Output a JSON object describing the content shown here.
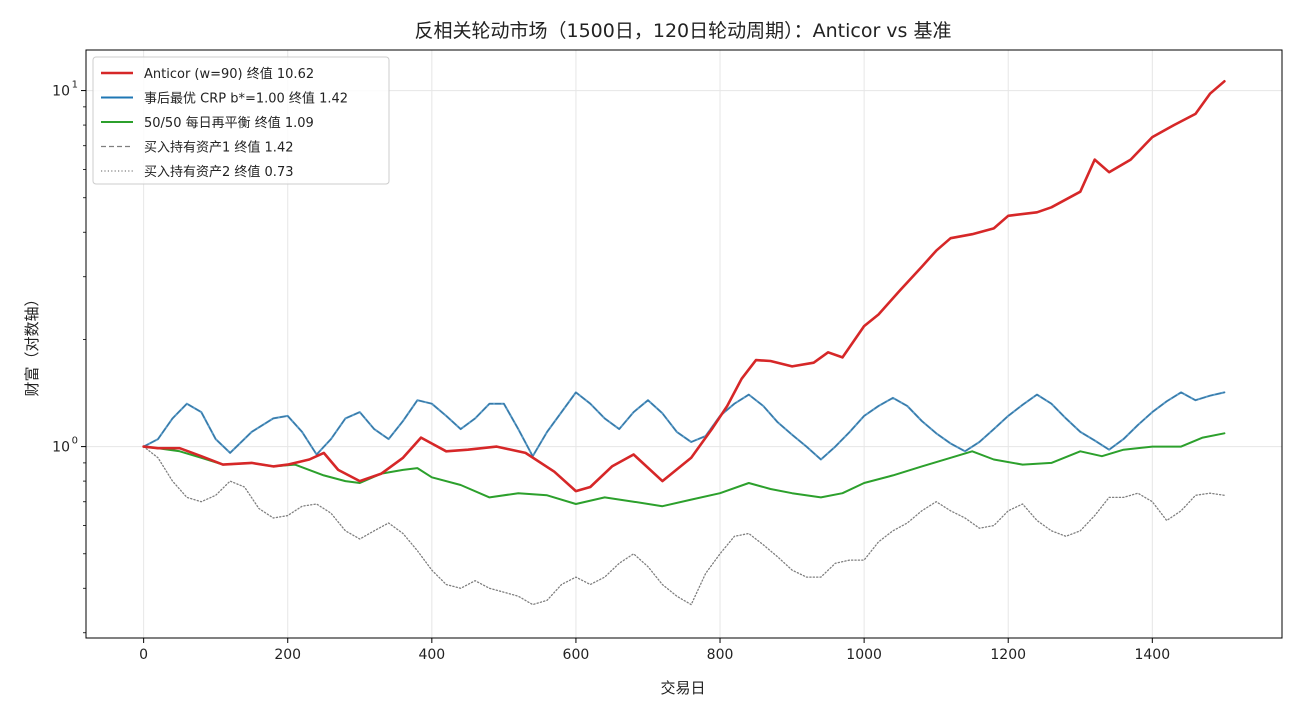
{
  "chart_data": {
    "type": "line",
    "title": "反相关轮动市场（1500日，120日轮动周期）：Anticor vs 基准",
    "xlabel": "交易日",
    "ylabel": "财富（对数轴）",
    "xlim": [
      -80,
      1580
    ],
    "ylim": [
      0.29,
      13.0
    ],
    "yscale": "log",
    "xticks": [
      0,
      200,
      400,
      600,
      800,
      1000,
      1200,
      1400
    ],
    "xtick_labels": [
      "0",
      "200",
      "400",
      "600",
      "800",
      "1000",
      "1200",
      "1400"
    ],
    "yticks": [
      {
        "value": 1,
        "base": "10",
        "exp": "0"
      },
      {
        "value": 10,
        "base": "10",
        "exp": "1"
      }
    ],
    "grid": true,
    "legend_position": "upper-left",
    "series": [
      {
        "name": "Anticor (w=90) 终值 10.62",
        "color": "#d62728",
        "style": "solid",
        "width": 2.6,
        "x": [
          0,
          20,
          50,
          80,
          110,
          150,
          180,
          200,
          230,
          250,
          270,
          300,
          330,
          360,
          385,
          400,
          420,
          450,
          490,
          530,
          570,
          600,
          620,
          650,
          680,
          720,
          760,
          790,
          810,
          830,
          850,
          870,
          900,
          930,
          950,
          970,
          1000,
          1020,
          1050,
          1080,
          1100,
          1120,
          1150,
          1180,
          1200,
          1240,
          1260,
          1300,
          1320,
          1340,
          1370,
          1400,
          1430,
          1460,
          1480,
          1500
        ],
        "y": [
          1.0,
          0.99,
          0.99,
          0.94,
          0.89,
          0.9,
          0.88,
          0.89,
          0.92,
          0.96,
          0.86,
          0.8,
          0.84,
          0.93,
          1.06,
          1.02,
          0.97,
          0.98,
          1.0,
          0.96,
          0.85,
          0.75,
          0.77,
          0.88,
          0.95,
          0.8,
          0.93,
          1.13,
          1.3,
          1.55,
          1.75,
          1.74,
          1.68,
          1.72,
          1.84,
          1.78,
          2.18,
          2.35,
          2.75,
          3.2,
          3.55,
          3.85,
          3.95,
          4.1,
          4.45,
          4.55,
          4.7,
          5.2,
          6.4,
          5.9,
          6.4,
          7.4,
          8.0,
          8.6,
          9.8,
          10.62
        ]
      },
      {
        "name": "事后最优 CRP b*=1.00 终值 1.42",
        "color": "#1f77b4",
        "style": "solid",
        "width": 2.0,
        "x": [
          0,
          20,
          40,
          60,
          80,
          100,
          120,
          150,
          180,
          200,
          220,
          240,
          260,
          280,
          300,
          320,
          340,
          360,
          380,
          400,
          420,
          440,
          460,
          480,
          500,
          520,
          540,
          560,
          580,
          600,
          620,
          640,
          660,
          680,
          700,
          720,
          740,
          760,
          780,
          800,
          820,
          840,
          860,
          880,
          900,
          920,
          940,
          960,
          980,
          1000,
          1020,
          1040,
          1060,
          1080,
          1100,
          1120,
          1140,
          1160,
          1180,
          1200,
          1220,
          1240,
          1260,
          1280,
          1300,
          1320,
          1340,
          1360,
          1380,
          1400,
          1420,
          1440,
          1460,
          1480,
          1500
        ],
        "y": [
          1.0,
          1.05,
          1.2,
          1.32,
          1.25,
          1.05,
          0.96,
          1.1,
          1.2,
          1.22,
          1.1,
          0.95,
          1.05,
          1.2,
          1.25,
          1.12,
          1.05,
          1.18,
          1.35,
          1.32,
          1.22,
          1.12,
          1.2,
          1.32,
          1.32,
          1.12,
          0.94,
          1.1,
          1.25,
          1.42,
          1.32,
          1.2,
          1.12,
          1.25,
          1.35,
          1.24,
          1.1,
          1.03,
          1.07,
          1.22,
          1.32,
          1.4,
          1.3,
          1.17,
          1.08,
          1.0,
          0.92,
          1.0,
          1.1,
          1.22,
          1.3,
          1.37,
          1.3,
          1.18,
          1.09,
          1.02,
          0.97,
          1.03,
          1.12,
          1.22,
          1.31,
          1.4,
          1.32,
          1.2,
          1.1,
          1.04,
          0.98,
          1.05,
          1.15,
          1.25,
          1.34,
          1.42,
          1.35,
          1.39,
          1.42
        ]
      },
      {
        "name": "50/50 每日再平衡 终值 1.09",
        "color": "#2ca02c",
        "style": "solid",
        "width": 2.0,
        "x": [
          0,
          20,
          50,
          80,
          110,
          150,
          180,
          210,
          250,
          280,
          300,
          330,
          360,
          380,
          400,
          440,
          480,
          520,
          560,
          600,
          640,
          680,
          720,
          760,
          800,
          840,
          870,
          900,
          940,
          970,
          1000,
          1040,
          1080,
          1120,
          1150,
          1180,
          1220,
          1260,
          1300,
          1330,
          1360,
          1400,
          1440,
          1470,
          1500
        ],
        "y": [
          1.0,
          0.99,
          0.97,
          0.93,
          0.89,
          0.9,
          0.88,
          0.89,
          0.83,
          0.8,
          0.79,
          0.84,
          0.86,
          0.87,
          0.82,
          0.78,
          0.72,
          0.74,
          0.73,
          0.69,
          0.72,
          0.7,
          0.68,
          0.71,
          0.74,
          0.79,
          0.76,
          0.74,
          0.72,
          0.74,
          0.79,
          0.83,
          0.88,
          0.93,
          0.97,
          0.92,
          0.89,
          0.9,
          0.97,
          0.94,
          0.98,
          1.0,
          1.0,
          1.06,
          1.09
        ]
      },
      {
        "name": "买入持有资产1 终值 1.42",
        "color": "#7f7f7f",
        "style": "dashed",
        "width": 1.3,
        "x": [
          0,
          20,
          40,
          60,
          80,
          100,
          120,
          150,
          180,
          200,
          220,
          240,
          260,
          280,
          300,
          320,
          340,
          360,
          380,
          400,
          420,
          440,
          460,
          480,
          500,
          520,
          540,
          560,
          580,
          600,
          620,
          640,
          660,
          680,
          700,
          720,
          740,
          760,
          780,
          800,
          820,
          840,
          860,
          880,
          900,
          920,
          940,
          960,
          980,
          1000,
          1020,
          1040,
          1060,
          1080,
          1100,
          1120,
          1140,
          1160,
          1180,
          1200,
          1220,
          1240,
          1260,
          1280,
          1300,
          1320,
          1340,
          1360,
          1380,
          1400,
          1420,
          1440,
          1460,
          1480,
          1500
        ],
        "y": [
          1.0,
          1.05,
          1.2,
          1.32,
          1.25,
          1.05,
          0.96,
          1.1,
          1.2,
          1.22,
          1.1,
          0.95,
          1.05,
          1.2,
          1.25,
          1.12,
          1.05,
          1.18,
          1.35,
          1.32,
          1.22,
          1.12,
          1.2,
          1.32,
          1.32,
          1.12,
          0.94,
          1.1,
          1.25,
          1.42,
          1.32,
          1.2,
          1.12,
          1.25,
          1.35,
          1.24,
          1.1,
          1.03,
          1.07,
          1.22,
          1.32,
          1.4,
          1.3,
          1.17,
          1.08,
          1.0,
          0.92,
          1.0,
          1.1,
          1.22,
          1.3,
          1.37,
          1.3,
          1.18,
          1.09,
          1.02,
          0.97,
          1.03,
          1.12,
          1.22,
          1.31,
          1.4,
          1.32,
          1.2,
          1.1,
          1.04,
          0.98,
          1.05,
          1.15,
          1.25,
          1.34,
          1.42,
          1.35,
          1.39,
          1.42
        ]
      },
      {
        "name": "买入持有资产2 终值 0.73",
        "color": "#7f7f7f",
        "style": "dotted",
        "width": 1.3,
        "x": [
          0,
          20,
          40,
          60,
          80,
          100,
          120,
          140,
          160,
          180,
          200,
          220,
          240,
          260,
          280,
          300,
          320,
          340,
          360,
          380,
          400,
          420,
          440,
          460,
          480,
          500,
          520,
          540,
          560,
          580,
          600,
          620,
          640,
          660,
          680,
          700,
          720,
          740,
          760,
          780,
          800,
          820,
          840,
          860,
          880,
          900,
          920,
          940,
          960,
          980,
          1000,
          1020,
          1040,
          1060,
          1080,
          1100,
          1120,
          1140,
          1160,
          1180,
          1200,
          1220,
          1240,
          1260,
          1280,
          1300,
          1320,
          1340,
          1360,
          1380,
          1400,
          1420,
          1440,
          1460,
          1480,
          1500
        ],
        "y": [
          1.0,
          0.93,
          0.8,
          0.72,
          0.7,
          0.73,
          0.8,
          0.77,
          0.67,
          0.63,
          0.64,
          0.68,
          0.69,
          0.65,
          0.58,
          0.55,
          0.58,
          0.61,
          0.57,
          0.51,
          0.45,
          0.41,
          0.4,
          0.42,
          0.4,
          0.39,
          0.38,
          0.36,
          0.37,
          0.41,
          0.43,
          0.41,
          0.43,
          0.47,
          0.5,
          0.46,
          0.41,
          0.38,
          0.36,
          0.44,
          0.5,
          0.56,
          0.57,
          0.53,
          0.49,
          0.45,
          0.43,
          0.43,
          0.47,
          0.48,
          0.48,
          0.54,
          0.58,
          0.61,
          0.66,
          0.7,
          0.66,
          0.63,
          0.59,
          0.6,
          0.66,
          0.69,
          0.62,
          0.58,
          0.56,
          0.58,
          0.64,
          0.72,
          0.72,
          0.74,
          0.7,
          0.62,
          0.66,
          0.73,
          0.74,
          0.73
        ]
      }
    ]
  }
}
